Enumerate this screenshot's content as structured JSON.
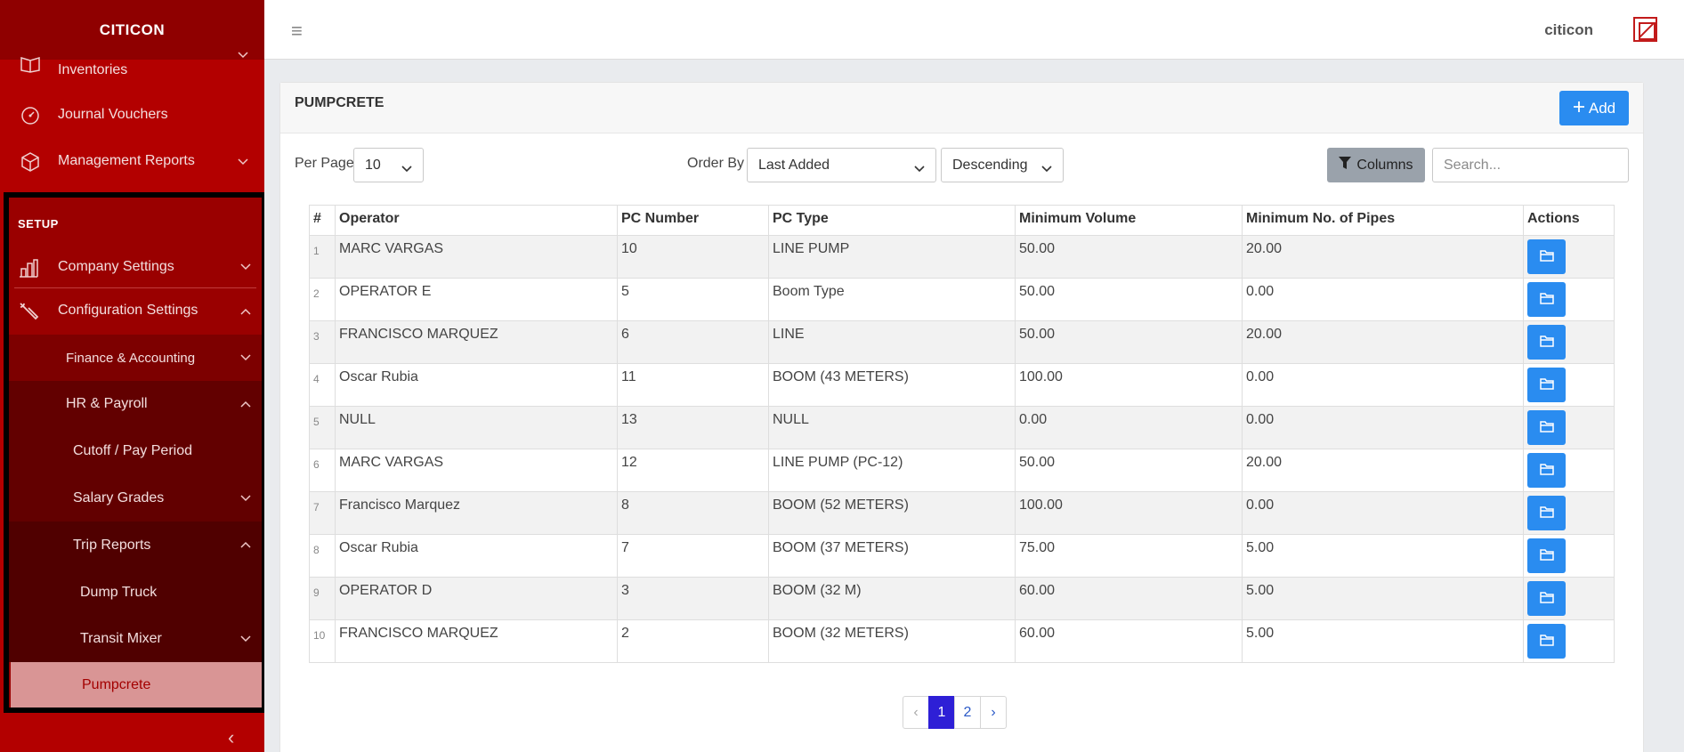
{
  "sidebar": {
    "brand": "CITICON",
    "items": [
      {
        "label": "Inventories",
        "icon": "book-icon"
      },
      {
        "label": "Journal Vouchers",
        "icon": "gauge-icon"
      },
      {
        "label": "Management Reports",
        "icon": "box-icon"
      }
    ],
    "section_title": "SETUP",
    "setup_items": {
      "company_settings": "Company Settings",
      "configuration_settings": "Configuration Settings",
      "finance_accounting": "Finance & Accounting",
      "hr_payroll": "HR & Payroll",
      "cutoff_pay_period": "Cutoff / Pay Period",
      "salary_grades": "Salary Grades",
      "trip_reports": "Trip Reports",
      "dump_truck": "Dump Truck",
      "transit_mixer": "Transit Mixer",
      "pumpcrete": "Pumpcrete"
    },
    "collapse_glyph": "‹"
  },
  "topbar": {
    "menu_glyph": "≡",
    "user_name": "citicon"
  },
  "card": {
    "title": "PUMPCRETE",
    "add_label": "Add"
  },
  "controls": {
    "per_page_label": "Per Page",
    "per_page_value": "10",
    "order_by_label": "Order By",
    "order_by_value": "Last Added",
    "direction_value": "Descending",
    "columns_label": "Columns",
    "search_placeholder": "Search..."
  },
  "table": {
    "headers": [
      "#",
      "Operator",
      "PC Number",
      "PC Type",
      "Minimum Volume",
      "Minimum No. of Pipes",
      "Actions"
    ],
    "rows": [
      {
        "num": "1",
        "operator": "MARC VARGAS",
        "pc_number": "10",
        "pc_type": "LINE PUMP",
        "min_volume": "50.00",
        "min_pipes": "20.00"
      },
      {
        "num": "2",
        "operator": "OPERATOR E",
        "pc_number": "5",
        "pc_type": "Boom Type",
        "min_volume": "50.00",
        "min_pipes": "0.00"
      },
      {
        "num": "3",
        "operator": "FRANCISCO MARQUEZ",
        "pc_number": "6",
        "pc_type": "LINE",
        "min_volume": "50.00",
        "min_pipes": "20.00"
      },
      {
        "num": "4",
        "operator": "Oscar Rubia",
        "pc_number": "11",
        "pc_type": "BOOM (43 METERS)",
        "min_volume": "100.00",
        "min_pipes": "0.00"
      },
      {
        "num": "5",
        "operator": "NULL",
        "pc_number": "13",
        "pc_type": "NULL",
        "min_volume": "0.00",
        "min_pipes": "0.00"
      },
      {
        "num": "6",
        "operator": "MARC VARGAS",
        "pc_number": "12",
        "pc_type": "LINE PUMP (PC-12)",
        "min_volume": "50.00",
        "min_pipes": "20.00"
      },
      {
        "num": "7",
        "operator": "Francisco Marquez",
        "pc_number": "8",
        "pc_type": "BOOM (52 METERS)",
        "min_volume": "100.00",
        "min_pipes": "0.00"
      },
      {
        "num": "8",
        "operator": "Oscar Rubia",
        "pc_number": "7",
        "pc_type": "BOOM (37 METERS)",
        "min_volume": "75.00",
        "min_pipes": "5.00"
      },
      {
        "num": "9",
        "operator": "OPERATOR D",
        "pc_number": "3",
        "pc_type": "BOOM (32 M)",
        "min_volume": "60.00",
        "min_pipes": "5.00"
      },
      {
        "num": "10",
        "operator": "FRANCISCO MARQUEZ",
        "pc_number": "2",
        "pc_type": "BOOM (32 METERS)",
        "min_volume": "60.00",
        "min_pipes": "5.00"
      }
    ]
  },
  "pagination": {
    "prev": "‹",
    "pages": [
      "1",
      "2"
    ],
    "current": "1",
    "next": "›"
  },
  "colors": {
    "sidebar_bg": "#b30000",
    "accent_blue": "#2a8cf0",
    "active_page": "#2e1fd6",
    "active_item_bg": "#d99595"
  }
}
